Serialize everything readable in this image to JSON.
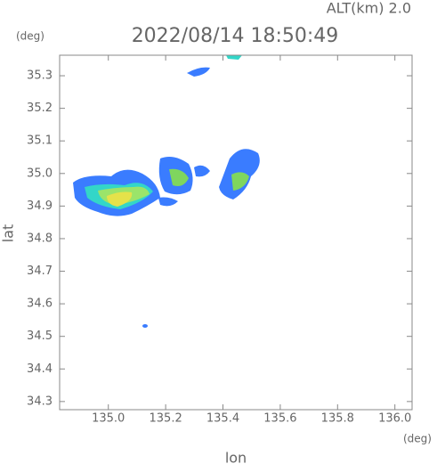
{
  "chart_data": {
    "type": "radar-map",
    "title": "2022/08/14 18:50:49",
    "altitude_label": "ALT(km)  2.0",
    "y_unit": "(deg)",
    "x_unit": "(deg)",
    "xlabel": "lon",
    "ylabel": "lat",
    "xlim": [
      134.83,
      136.06
    ],
    "ylim": [
      34.275,
      35.363
    ],
    "xticks": [
      {
        "value": 135.0,
        "label": "135.0"
      },
      135.2,
      135.4,
      135.6,
      135.8,
      {
        "value": 136.0,
        "label": "136.0"
      }
    ],
    "yticks": [
      34.3,
      34.4,
      34.5,
      34.6,
      34.7,
      34.8,
      34.9,
      {
        "value": 35.0,
        "label": "35.0"
      },
      35.1,
      35.2,
      35.3
    ]
  }
}
